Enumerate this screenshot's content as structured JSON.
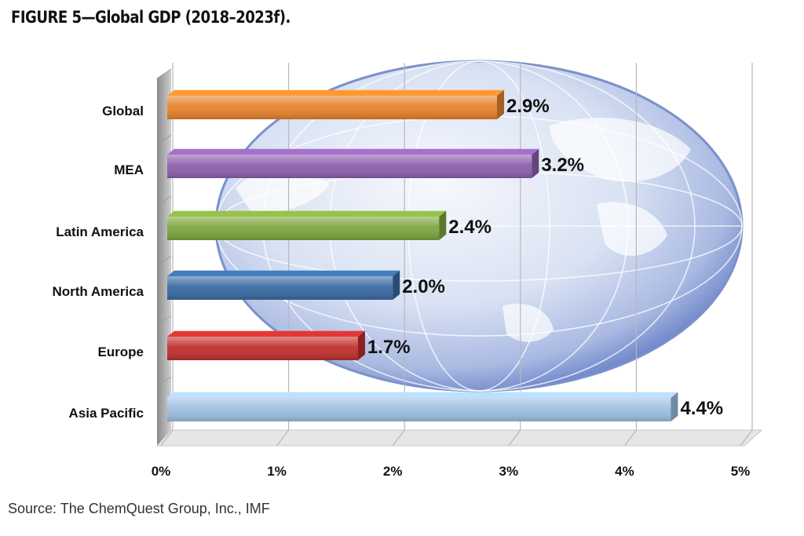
{
  "figure": {
    "title": "FIGURE 5—Global GDP (2018–2023f).",
    "source": "Source: The ChemQuest Group, Inc., IMF"
  },
  "colors": {
    "Global": "#e8822a",
    "MEA": "#8e5fae",
    "Latin America": "#7ea63e",
    "North America": "#3a6aa3",
    "Europe": "#c12f2d",
    "Asia Pacific": "#9fbfe3",
    "globe": "#6b84c8"
  },
  "chart_data": {
    "type": "bar",
    "orientation": "horizontal",
    "style": "3d",
    "categories": [
      "Global",
      "MEA",
      "Latin America",
      "North America",
      "Europe",
      "Asia Pacific"
    ],
    "values": [
      2.9,
      3.2,
      2.4,
      2.0,
      1.7,
      4.4
    ],
    "data_labels": [
      "2.9%",
      "3.2%",
      "2.4%",
      "2.0%",
      "1.7%",
      "4.4%"
    ],
    "xlim": [
      0,
      5
    ],
    "x_ticks": [
      0,
      1,
      2,
      3,
      4,
      5
    ],
    "x_tick_labels": [
      "0%",
      "1%",
      "2%",
      "3%",
      "4%",
      "5%"
    ],
    "grid": true,
    "legend": "none",
    "background": "globe illustration"
  }
}
